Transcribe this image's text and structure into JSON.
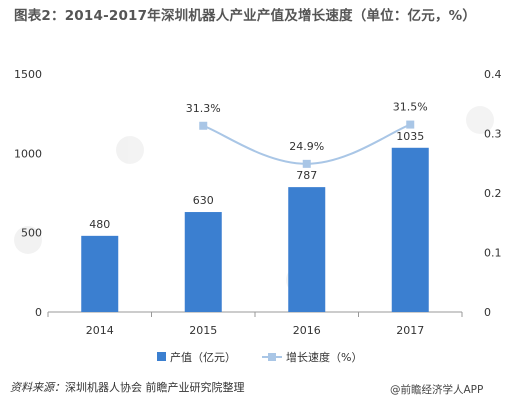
{
  "title": "图表2：2014-2017年深圳机器人产业产值及增长速度（单位：亿元，%）",
  "source_label": "资料来源：",
  "source_text": "深圳机器人协会 前瞻产业研究院整理",
  "watermark_text": "@前瞻经济学人APP",
  "colors": {
    "bar": "#3b7fd0",
    "line": "#a9c6e6",
    "marker": "#a9c6e6",
    "axis": "#999999",
    "text": "#333333"
  },
  "chart_data": {
    "type": "bar+line",
    "title": "图表2：2014-2017年深圳机器人产业产值及增长速度（单位：亿元，%）",
    "categories": [
      "2014",
      "2015",
      "2016",
      "2017"
    ],
    "series": [
      {
        "name": "产值（亿元）",
        "type": "bar",
        "axis": "left",
        "values": [
          480,
          630,
          787,
          1035
        ],
        "labels": [
          "480",
          "630",
          "787",
          "1035"
        ]
      },
      {
        "name": "增长速度（%）",
        "type": "line",
        "axis": "right",
        "values": [
          null,
          0.313,
          0.249,
          0.315
        ],
        "labels": [
          "",
          "31.3%",
          "24.9%",
          "31.5%"
        ]
      }
    ],
    "y_left": {
      "ylim": [
        0,
        1500
      ],
      "ticks": [
        0,
        500,
        1000,
        1500
      ],
      "tick_labels": [
        "0",
        "500",
        "1000",
        "1500"
      ]
    },
    "y_right": {
      "ylim": [
        0,
        0.4
      ],
      "ticks": [
        0,
        0.1,
        0.2,
        0.3,
        0.4
      ],
      "tick_labels": [
        "0",
        "0.1",
        "0.2",
        "0.3",
        "0.4"
      ]
    },
    "grid": false,
    "legend": "bottom-center"
  }
}
